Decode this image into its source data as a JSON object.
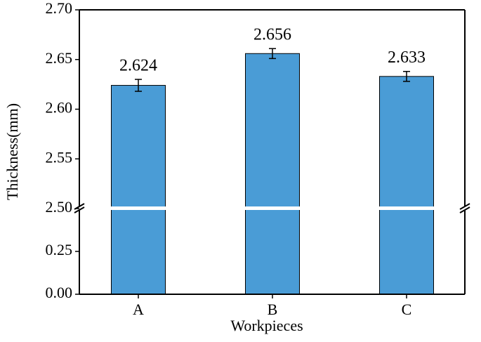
{
  "chart_data": {
    "type": "bar",
    "xlabel": "Workpieces",
    "ylabel": "Thickness(mm)",
    "categories": [
      "A",
      "B",
      "C"
    ],
    "values": [
      2.624,
      2.656,
      2.633
    ],
    "errors": [
      0.006,
      0.005,
      0.005
    ],
    "color": "#4a9cd6",
    "ylim": [
      0,
      2.7
    ],
    "y_break": [
      0.5,
      2.5
    ],
    "yticks": [
      {
        "value": 0,
        "label": "0.00"
      },
      0.25,
      {
        "value": 2.5,
        "label": "2.50"
      },
      2.55,
      {
        "value": 2.6,
        "label": "2.60"
      },
      2.65,
      {
        "value": 2.7,
        "label": "2.70"
      }
    ]
  }
}
